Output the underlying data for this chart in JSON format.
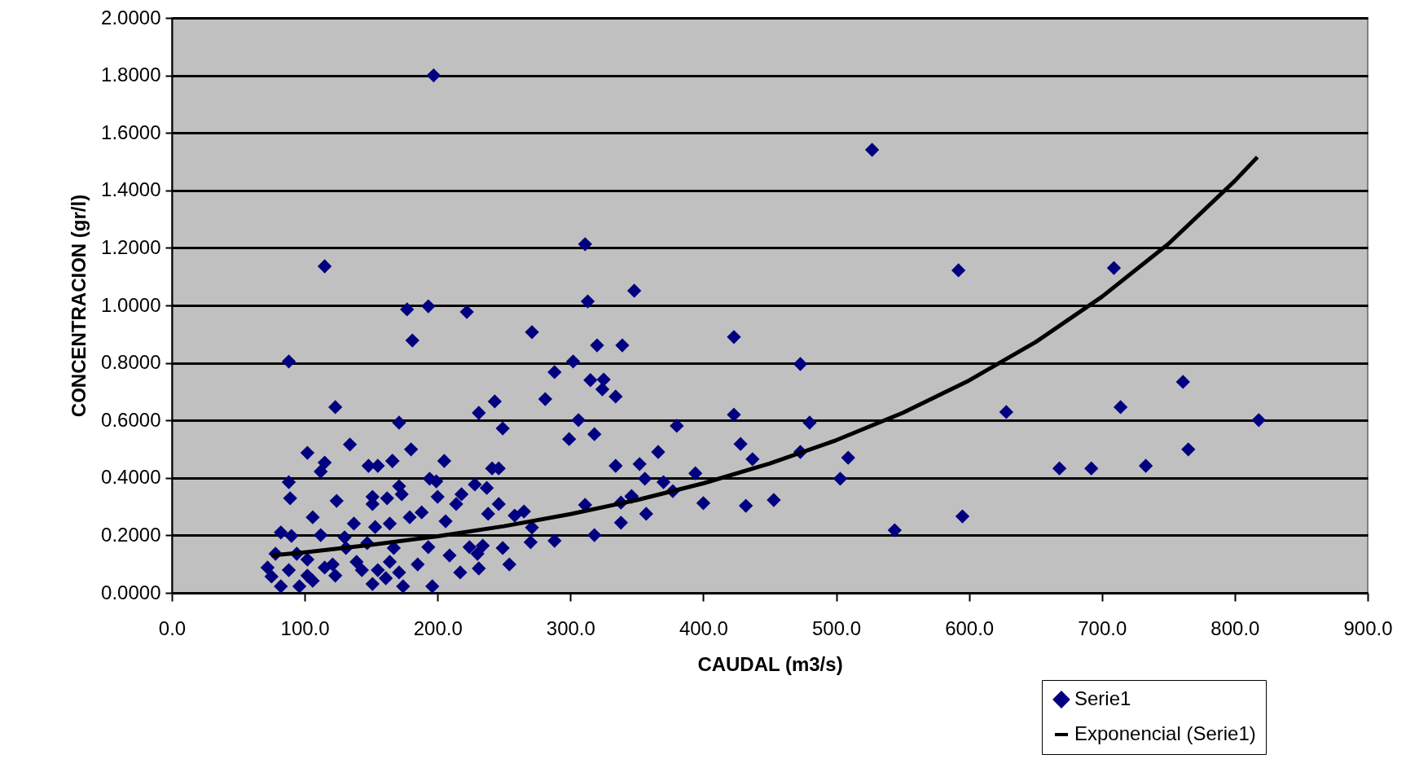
{
  "chart_data": {
    "type": "scatter",
    "xlabel": "CAUDAL (m3/s)",
    "ylabel": "CONCENTRACION (gr/l)",
    "xlim": [
      0,
      900
    ],
    "ylim": [
      0,
      2
    ],
    "xticks": [
      {
        "value": 0,
        "label": "0.0"
      },
      {
        "value": 100,
        "label": "100.0"
      },
      {
        "value": 200,
        "label": "200.0"
      },
      {
        "value": 300,
        "label": "300.0"
      },
      {
        "value": 400,
        "label": "400.0"
      },
      {
        "value": 500,
        "label": "500.0"
      },
      {
        "value": 600,
        "label": "600.0"
      },
      {
        "value": 700,
        "label": "700.0"
      },
      {
        "value": 800,
        "label": "800.0"
      },
      {
        "value": 900,
        "label": "900.0"
      }
    ],
    "yticks": [
      {
        "value": 0,
        "label": "0.0000"
      },
      {
        "value": 0.2,
        "label": "0.2000"
      },
      {
        "value": 0.4,
        "label": "0.4000"
      },
      {
        "value": 0.6,
        "label": "0.6000"
      },
      {
        "value": 0.8,
        "label": "0.8000"
      },
      {
        "value": 1,
        "label": "1.0000"
      },
      {
        "value": 1.2,
        "label": "1.2000"
      },
      {
        "value": 1.4,
        "label": "1.4000"
      },
      {
        "value": 1.6,
        "label": "1.6000"
      },
      {
        "value": 1.8,
        "label": "1.8000"
      },
      {
        "value": 2,
        "label": "2.0000"
      }
    ],
    "grid": "y",
    "legend": "bottom right",
    "series": [
      {
        "name": "Serie1",
        "marker": "diamond",
        "color": "#000080",
        "x": [
          197,
          115,
          177,
          193,
          222,
          311,
          313,
          348,
          527,
          592,
          709,
          423,
          473,
          628,
          423,
          480,
          380,
          366,
          428,
          437,
          473,
          509,
          503,
          394,
          352,
          356,
          370,
          377,
          400,
          432,
          453,
          346,
          357,
          544,
          595,
          668,
          692,
          714,
          761,
          818,
          765,
          733,
          271,
          181,
          320,
          339,
          302,
          288,
          315,
          325,
          324,
          334,
          281,
          243,
          231,
          249,
          306,
          299,
          318,
          171,
          180,
          205,
          166,
          241,
          246,
          334,
          194,
          199,
          228,
          237,
          171,
          173,
          218,
          200,
          246,
          265,
          258,
          311,
          338,
          346,
          338,
          271,
          270,
          288,
          318,
          238,
          179,
          188,
          214,
          206,
          193,
          209,
          230,
          249,
          254,
          217,
          231,
          196,
          174,
          185,
          171,
          234,
          224,
          88,
          123,
          102,
          134,
          115,
          112,
          148,
          155,
          166,
          88,
          89,
          124,
          151,
          151,
          162,
          106,
          112,
          82,
          90,
          137,
          130,
          153,
          164,
          72,
          75,
          82,
          96,
          88,
          102,
          106,
          115,
          123,
          121,
          139,
          143,
          151,
          155,
          161,
          164,
          167,
          147,
          131,
          102,
          94,
          78
        ],
        "values": [
          1.8,
          1.136,
          0.986,
          0.997,
          0.977,
          1.213,
          1.014,
          1.051,
          1.541,
          1.122,
          1.13,
          0.89,
          0.796,
          0.629,
          0.62,
          0.592,
          0.581,
          0.49,
          0.518,
          0.465,
          0.49,
          0.47,
          0.397,
          0.416,
          0.448,
          0.397,
          0.385,
          0.354,
          0.312,
          0.303,
          0.323,
          0.337,
          0.275,
          0.218,
          0.266,
          0.433,
          0.433,
          0.646,
          0.734,
          0.601,
          0.499,
          0.442,
          0.907,
          0.878,
          0.861,
          0.861,
          0.805,
          0.768,
          0.74,
          0.742,
          0.708,
          0.683,
          0.674,
          0.666,
          0.626,
          0.572,
          0.601,
          0.535,
          0.552,
          0.592,
          0.499,
          0.459,
          0.459,
          0.433,
          0.433,
          0.442,
          0.397,
          0.388,
          0.377,
          0.365,
          0.371,
          0.343,
          0.343,
          0.334,
          0.309,
          0.283,
          0.269,
          0.306,
          0.314,
          0.334,
          0.244,
          0.227,
          0.176,
          0.181,
          0.201,
          0.275,
          0.263,
          0.28,
          0.309,
          0.249,
          0.159,
          0.13,
          0.136,
          0.156,
          0.099,
          0.071,
          0.085,
          0.023,
          0.023,
          0.099,
          0.071,
          0.164,
          0.159,
          0.805,
          0.646,
          0.487,
          0.516,
          0.453,
          0.422,
          0.442,
          0.442,
          0.459,
          0.385,
          0.329,
          0.32,
          0.334,
          0.309,
          0.329,
          0.263,
          0.201,
          0.21,
          0.198,
          0.241,
          0.193,
          0.229,
          0.241,
          0.088,
          0.057,
          0.023,
          0.023,
          0.079,
          0.06,
          0.042,
          0.088,
          0.06,
          0.099,
          0.108,
          0.079,
          0.031,
          0.079,
          0.051,
          0.108,
          0.156,
          0.173,
          0.156,
          0.116,
          0.136,
          0.136
        ]
      },
      {
        "name": "Exponencial (Serie1)",
        "type": "line",
        "color": "#000000",
        "x": [
          75,
          100,
          150,
          200,
          250,
          300,
          350,
          400,
          450,
          500,
          550,
          600,
          650,
          700,
          750,
          800,
          817
        ],
        "values": [
          0.13,
          0.141,
          0.167,
          0.197,
          0.232,
          0.274,
          0.323,
          0.381,
          0.45,
          0.531,
          0.626,
          0.739,
          0.872,
          1.03,
          1.214,
          1.433,
          1.516
        ]
      }
    ]
  }
}
